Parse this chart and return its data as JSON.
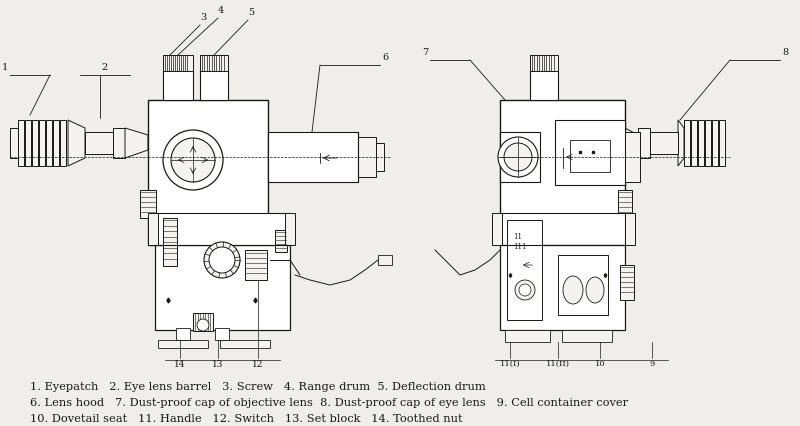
{
  "bg_color": "#f0eeeb",
  "fig_width": 8.0,
  "fig_height": 4.26,
  "dpi": 100,
  "legend_line1": "1. Eyepatch   2. Eye lens barrel   3. Screw   4. Range drum  5. Deflection drum",
  "legend_line2": "6. Lens hood   7. Dust-proof cap of objective lens  8. Dust-proof cap of eye lens   9. Cell container cover",
  "legend_line3": "10. Dovetail seat   11. Handle   12. Switch   13. Set block   14. Toothed nut",
  "lc": "#1a1814",
  "lw": 0.7,
  "scope_fill": "#ffffff",
  "scope_fill2": "#f5f3ef"
}
